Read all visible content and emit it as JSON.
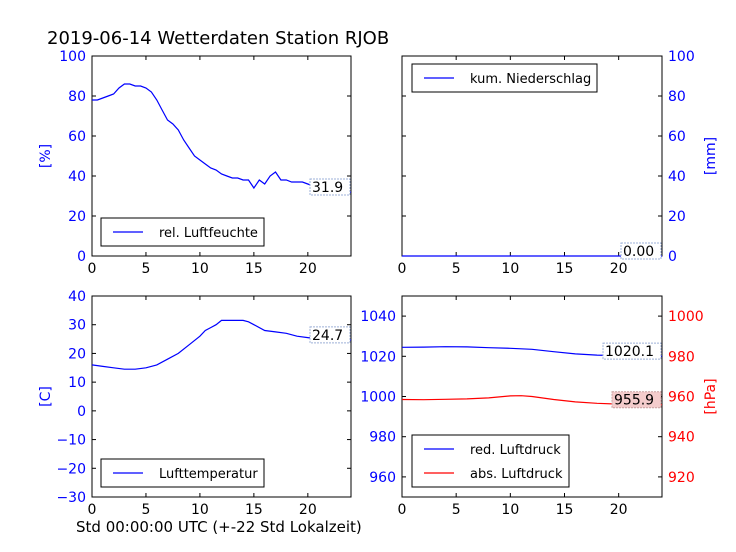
{
  "title": "2019-06-14 Wetterdaten Station RJOB",
  "xlabel": "Std 00:00:00 UTC (+-22 Std Lokalzeit)",
  "colors": {
    "blue": "#0000ff",
    "red": "#ff0000",
    "black": "#000000"
  },
  "chart_data": [
    {
      "type": "line",
      "panel": "top-left",
      "ylabel": "[%]",
      "xlim": [
        0,
        24
      ],
      "ylim": [
        0,
        100
      ],
      "xticks": [
        0,
        5,
        10,
        15,
        20
      ],
      "yticks": [
        0,
        20,
        40,
        60,
        80,
        100
      ],
      "legend": "lower-left",
      "series": [
        {
          "name": "rel. Luftfeuchte",
          "color": "#0000ff",
          "x": [
            0,
            0.5,
            1,
            1.5,
            2,
            2.5,
            3,
            3.5,
            4,
            4.5,
            5,
            5.5,
            6,
            6.5,
            7,
            7.5,
            8,
            8.5,
            9,
            9.5,
            10,
            10.5,
            11,
            11.5,
            12,
            12.5,
            13,
            13.5,
            14,
            14.5,
            15,
            15.5,
            16,
            16.5,
            17,
            17.5,
            18,
            18.5,
            19,
            19.5,
            20,
            21,
            22,
            23,
            24
          ],
          "y": [
            78,
            78,
            79,
            80,
            81,
            84,
            86,
            86,
            85,
            85,
            84,
            82,
            78,
            73,
            68,
            66,
            63,
            58,
            54,
            50,
            48,
            46,
            44,
            43,
            41,
            40,
            39,
            39,
            38,
            38,
            34,
            38,
            36,
            40,
            42,
            38,
            38,
            37,
            37,
            37,
            36,
            34,
            33,
            32,
            32
          ]
        }
      ],
      "end_label": "31.9"
    },
    {
      "type": "line",
      "panel": "top-right",
      "ylabel": "[mm]",
      "xlim": [
        0,
        24
      ],
      "ylim": [
        0,
        100
      ],
      "xticks": [
        0,
        5,
        10,
        15,
        20
      ],
      "yticks": [
        0,
        20,
        40,
        60,
        80,
        100
      ],
      "legend": "upper-left",
      "series": [
        {
          "name": "kum. Niederschlag",
          "color": "#0000ff",
          "x": [
            0,
            24
          ],
          "y": [
            0,
            0
          ]
        }
      ],
      "end_label": "0.00"
    },
    {
      "type": "line",
      "panel": "bottom-left",
      "ylabel": "[C]",
      "xlim": [
        0,
        24
      ],
      "ylim": [
        -30,
        40
      ],
      "xticks": [
        0,
        5,
        10,
        15,
        20
      ],
      "yticks": [
        -30,
        -20,
        -10,
        0,
        10,
        20,
        30,
        40
      ],
      "legend": "lower-left",
      "series": [
        {
          "name": "Lufttemperatur",
          "color": "#0000ff",
          "x": [
            0,
            1,
            2,
            3,
            4,
            5,
            6,
            7,
            8,
            9,
            10,
            10.5,
            11,
            11.5,
            12,
            13,
            14,
            14.5,
            15,
            16,
            17,
            18,
            19,
            20,
            21,
            22,
            23,
            24
          ],
          "y": [
            16,
            15.5,
            15,
            14.5,
            14.5,
            15,
            16,
            18,
            20,
            23,
            26,
            28,
            29,
            30,
            31.5,
            31.5,
            31.5,
            31,
            30,
            28,
            27.5,
            27,
            26,
            25.5,
            25,
            25,
            24.8,
            24.7
          ]
        }
      ],
      "end_label": "24.7"
    },
    {
      "type": "line",
      "panel": "bottom-right",
      "ylabel": "[hPa]",
      "xlim": [
        0,
        24
      ],
      "ylim": [
        950,
        1050
      ],
      "ylim_right": [
        910,
        1010
      ],
      "xticks": [
        0,
        5,
        10,
        15,
        20
      ],
      "yticks": [
        960,
        980,
        1000,
        1020,
        1040
      ],
      "yticks_right": [
        920,
        940,
        960,
        980,
        1000
      ],
      "legend": "lower-left",
      "series": [
        {
          "name": "red. Luftdruck",
          "color": "#0000ff",
          "axis": "left",
          "x": [
            0,
            2,
            4,
            6,
            8,
            10,
            12,
            14,
            16,
            18,
            20,
            22,
            24
          ],
          "y": [
            1024.5,
            1024.6,
            1024.8,
            1024.7,
            1024.3,
            1024,
            1023.5,
            1022.3,
            1021.2,
            1020.6,
            1020.3,
            1020.2,
            1020.1
          ]
        },
        {
          "name": "abs. Luftdruck",
          "color": "#ff0000",
          "axis": "right",
          "x": [
            0,
            2,
            4,
            6,
            8,
            10,
            11,
            12,
            14,
            16,
            18,
            20,
            22,
            24
          ],
          "y": [
            958.5,
            958.4,
            958.6,
            958.8,
            959.3,
            960.3,
            960.4,
            960,
            958.5,
            957.3,
            956.6,
            956.2,
            955.9,
            955.9
          ]
        }
      ],
      "end_labels": [
        "1020.1",
        "955.9"
      ]
    }
  ]
}
